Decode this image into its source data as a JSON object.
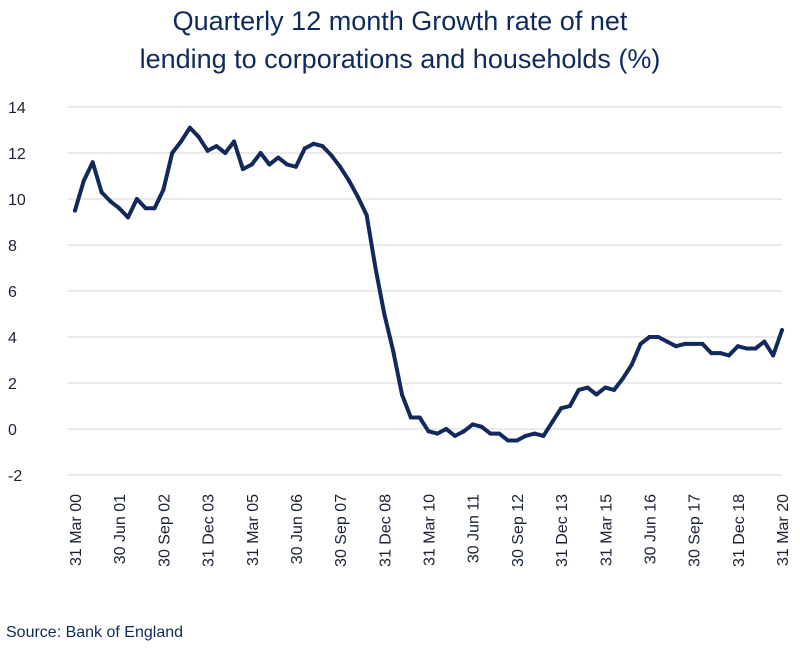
{
  "title_line1": "Quarterly 12 month Growth rate of net",
  "title_line2": "lending to corporations and households (%)",
  "source": "Source: Bank of England",
  "chart_data": {
    "type": "line",
    "title": "Quarterly 12 month Growth rate of net lending to corporations and households (%)",
    "xlabel": "",
    "ylabel": "",
    "ylim": [
      -2,
      14
    ],
    "y_ticks": [
      -2,
      0,
      2,
      4,
      6,
      8,
      10,
      12,
      14
    ],
    "grid": true,
    "legend": "none",
    "line_color": "#13295c",
    "x_tick_labels": [
      "31 Mar 00",
      "30 Jun 01",
      "30 Sep 02",
      "31 Dec 03",
      "31 Mar 05",
      "30 Jun 06",
      "30 Sep 07",
      "31 Dec 08",
      "31 Mar 10",
      "30 Jun 11",
      "30 Sep 12",
      "31 Dec 13",
      "31 Mar 15",
      "30 Jun 16",
      "30 Sep 17",
      "31 Dec 18",
      "31 Mar 20"
    ],
    "series": [
      {
        "values": [
          9.5,
          10.8,
          11.6,
          10.3,
          9.9,
          9.6,
          9.2,
          10.0,
          9.6,
          9.6,
          10.4,
          12.0,
          12.5,
          13.1,
          12.7,
          12.1,
          12.3,
          12.0,
          12.5,
          11.3,
          11.5,
          12.0,
          11.5,
          11.8,
          11.5,
          11.4,
          12.2,
          12.4,
          12.3,
          11.9,
          11.4,
          10.8,
          10.1,
          9.3,
          7.0,
          5.0,
          3.4,
          1.5,
          0.5,
          0.5,
          -0.1,
          -0.2,
          0.0,
          -0.3,
          -0.1,
          0.2,
          0.1,
          -0.2,
          -0.2,
          -0.5,
          -0.5,
          -0.3,
          -0.2,
          -0.3,
          0.3,
          0.9,
          1.0,
          1.7,
          1.8,
          1.5,
          1.8,
          1.7,
          2.2,
          2.8,
          3.7,
          4.0,
          4.0,
          3.8,
          3.6,
          3.7,
          3.7,
          3.7,
          3.3,
          3.3,
          3.2,
          3.6,
          3.5,
          3.5,
          3.8,
          3.2,
          4.3
        ]
      }
    ]
  }
}
